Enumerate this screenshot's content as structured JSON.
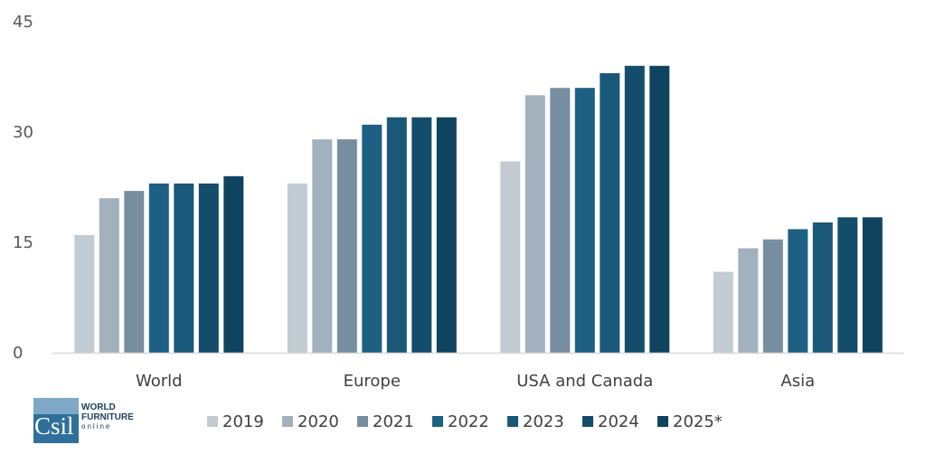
{
  "chart_data": {
    "type": "bar",
    "categories": [
      "World",
      "Europe",
      "USA and Canada",
      "Asia"
    ],
    "series": [
      {
        "name": "2019",
        "color": "#c3ccd3",
        "values": [
          16,
          23,
          26,
          11
        ]
      },
      {
        "name": "2020",
        "color": "#a1b1bd",
        "values": [
          21,
          29,
          35,
          14.2
        ]
      },
      {
        "name": "2021",
        "color": "#778ea1",
        "values": [
          22,
          29,
          36,
          15.4
        ]
      },
      {
        "name": "2022",
        "color": "#1d6083",
        "values": [
          23,
          31,
          36,
          16.8
        ]
      },
      {
        "name": "2023",
        "color": "#195878",
        "values": [
          23,
          32,
          38,
          17.7
        ]
      },
      {
        "name": "2024",
        "color": "#134d6b",
        "values": [
          23,
          32,
          39,
          18.4
        ]
      },
      {
        "name": "2025*",
        "color": "#0f4460",
        "values": [
          24,
          32,
          39,
          18.4
        ]
      }
    ],
    "y_ticks": [
      "0",
      "15",
      "30",
      "45"
    ],
    "ylim": [
      0,
      45
    ],
    "grid": false,
    "legend_position": "bottom"
  },
  "logo": {
    "mark_text": "Csil",
    "line1": "WORLD",
    "line2": "FURNITURE",
    "line3": "online"
  }
}
